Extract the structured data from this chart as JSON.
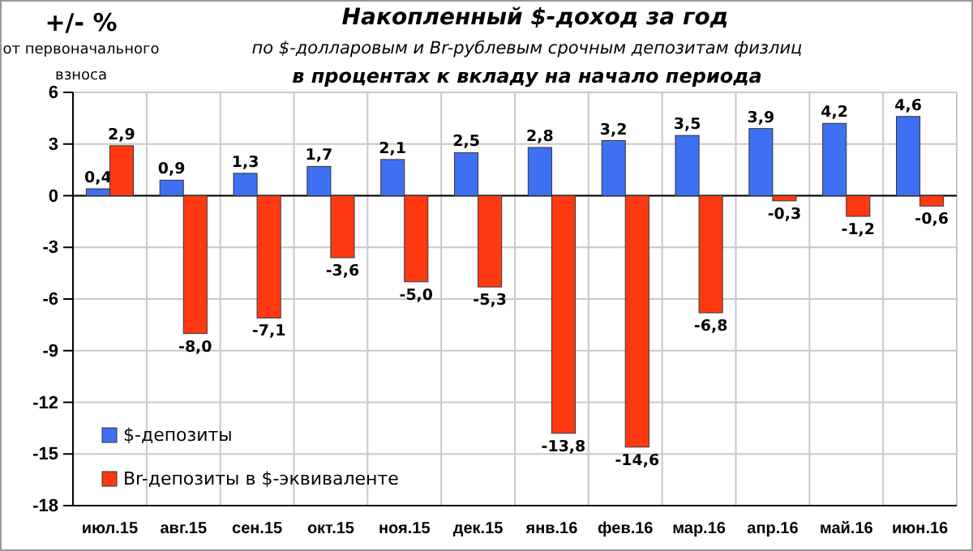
{
  "chart_data": {
    "type": "bar",
    "title": "Накопленный  $-доход за год",
    "subtitle": "по $-долларовым  и Br-рублевым срочным депозитам физлиц",
    "annotations": [
      "в процентах к вкладу на начало периода",
      "+/- %",
      "от первоначального взноса"
    ],
    "categories": [
      "июл.15",
      "авг.15",
      "сен.15",
      "окт.15",
      "ноя.15",
      "дек.15",
      "янв.16",
      "фев.16",
      "мар.16",
      "апр.16",
      "май.16",
      "июн.16"
    ],
    "series": [
      {
        "name": "$-депозиты",
        "color": "#3f6ff2",
        "values": [
          0.4,
          0.9,
          1.3,
          1.7,
          2.1,
          2.5,
          2.8,
          3.2,
          3.5,
          3.9,
          4.2,
          4.6
        ],
        "value_labels": [
          "0,4",
          "0,9",
          "1,3",
          "1,7",
          "2,1",
          "2,5",
          "2,8",
          "3,2",
          "3,5",
          "3,9",
          "4,2",
          "4,6"
        ]
      },
      {
        "name": "Br-депозиты в $-эквиваленте",
        "color": "#ff3a12",
        "values": [
          2.9,
          -8.0,
          -7.1,
          -3.6,
          -5.0,
          -5.3,
          -13.8,
          -14.6,
          -6.8,
          -0.3,
          -1.2,
          -0.6
        ],
        "value_labels": [
          "2,9",
          "-8,0",
          "-7,1",
          "-3,6",
          "-5,0",
          "-5,3",
          "-13,8",
          "-14,6",
          "-6,8",
          "-0,3",
          "-1,2",
          "-0,6"
        ]
      }
    ],
    "ylim": [
      -18,
      6
    ],
    "yticks": [
      -18,
      -15,
      -12,
      -9,
      -6,
      -3,
      0,
      3,
      6
    ],
    "grid": true,
    "legend": "bottom left"
  }
}
